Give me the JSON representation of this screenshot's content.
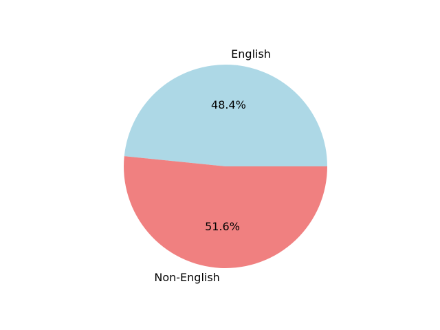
{
  "chart_data": {
    "type": "pie",
    "slices": [
      {
        "label": "English",
        "value": 48.4,
        "pct_label": "48.4%",
        "color": "#add8e6"
      },
      {
        "label": "Non-English",
        "value": 51.6,
        "pct_label": "51.6%",
        "color": "#f08080"
      }
    ],
    "start_angle_deg": 0,
    "direction": "counterclockwise"
  }
}
